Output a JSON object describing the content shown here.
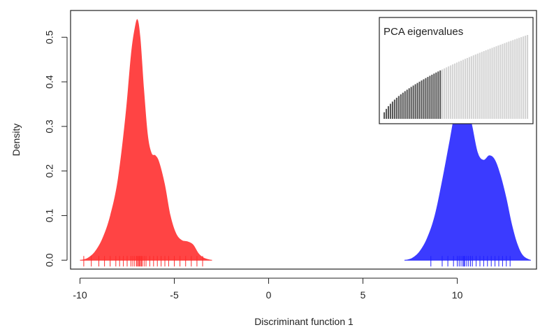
{
  "chart_data": {
    "type": "area",
    "title": "",
    "xlabel": "Discriminant function 1",
    "ylabel": "Density",
    "xlim": [
      -10.5,
      14.2
    ],
    "ylim": [
      -0.02,
      0.56
    ],
    "x_ticks": [
      -10,
      -5,
      0,
      5,
      10
    ],
    "x_tick_labels": [
      "-10",
      "-5",
      "0",
      "5",
      "10"
    ],
    "y_ticks": [
      0.0,
      0.1,
      0.2,
      0.3,
      0.4,
      0.5
    ],
    "y_tick_labels": [
      "0.0",
      "0.1",
      "0.2",
      "0.3",
      "0.4",
      "0.5"
    ],
    "grid": false,
    "series": [
      {
        "color": "#ff2a2a",
        "x": [
          -10.0,
          -9.6,
          -9.2,
          -8.8,
          -8.4,
          -8.0,
          -7.6,
          -7.3,
          -7.1,
          -6.95,
          -6.8,
          -6.6,
          -6.4,
          -6.2,
          -6.0,
          -5.8,
          -5.5,
          -5.2,
          -4.9,
          -4.6,
          -4.3,
          -4.0,
          -3.7,
          -3.4,
          -3.0
        ],
        "y": [
          0.0,
          0.005,
          0.02,
          0.05,
          0.1,
          0.18,
          0.32,
          0.46,
          0.52,
          0.54,
          0.5,
          0.38,
          0.28,
          0.24,
          0.235,
          0.22,
          0.17,
          0.1,
          0.06,
          0.045,
          0.042,
          0.035,
          0.015,
          0.005,
          0.0
        ]
      },
      {
        "color": "#2020ff",
        "x": [
          7.2,
          7.6,
          8.0,
          8.4,
          8.8,
          9.2,
          9.6,
          9.9,
          10.1,
          10.3,
          10.5,
          10.8,
          11.1,
          11.4,
          11.7,
          12.0,
          12.3,
          12.6,
          12.9,
          13.2,
          13.5,
          13.9
        ],
        "y": [
          0.0,
          0.005,
          0.02,
          0.05,
          0.1,
          0.18,
          0.27,
          0.34,
          0.375,
          0.385,
          0.365,
          0.3,
          0.24,
          0.225,
          0.235,
          0.225,
          0.19,
          0.14,
          0.08,
          0.035,
          0.01,
          0.0
        ]
      }
    ],
    "rug": {
      "red_x": [
        -9.8,
        -9.4,
        -9.0,
        -8.7,
        -8.4,
        -8.1,
        -7.9,
        -7.7,
        -7.5,
        -7.3,
        -7.2,
        -7.1,
        -7.0,
        -6.95,
        -6.9,
        -6.85,
        -6.8,
        -6.75,
        -6.7,
        -6.6,
        -6.5,
        -6.3,
        -6.1,
        -5.9,
        -5.7,
        -5.5,
        -5.3,
        -5.0,
        -4.7,
        -4.4,
        -4.1,
        -3.8,
        -3.5
      ],
      "blue_x": [
        8.6,
        9.2,
        9.5,
        9.8,
        10.0,
        10.1,
        10.2,
        10.3,
        10.35,
        10.4,
        10.5,
        10.6,
        10.7,
        10.8,
        11.0,
        11.2,
        11.4,
        11.6,
        11.8,
        12.0,
        12.2,
        12.4,
        12.6,
        12.8
      ]
    },
    "inset": {
      "title": "PCA eigenvalues",
      "bars_total": 70,
      "bars_dark": 28,
      "dark_color": "#555555",
      "light_color": "#d3d3d3"
    }
  }
}
